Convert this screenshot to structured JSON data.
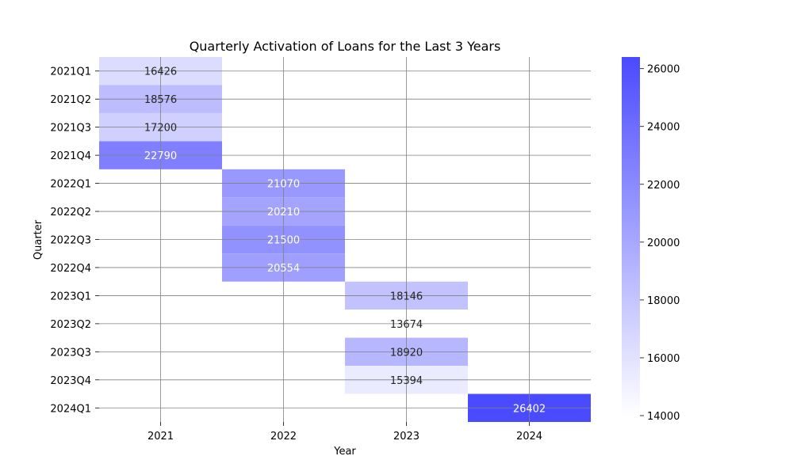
{
  "chart_data": {
    "type": "heatmap",
    "title": "Quarterly Activation of Loans for the Last 3 Years",
    "xlabel": "Year",
    "ylabel": "Quarter",
    "x_categories": [
      "2021",
      "2022",
      "2023",
      "2024"
    ],
    "y_categories": [
      "2021Q1",
      "2021Q2",
      "2021Q3",
      "2021Q4",
      "2022Q1",
      "2022Q2",
      "2022Q3",
      "2022Q4",
      "2023Q1",
      "2023Q2",
      "2023Q3",
      "2023Q4",
      "2024Q1"
    ],
    "cells": [
      {
        "quarter": "2021Q1",
        "year": "2021",
        "value": 16426
      },
      {
        "quarter": "2021Q2",
        "year": "2021",
        "value": 18576
      },
      {
        "quarter": "2021Q3",
        "year": "2021",
        "value": 17200
      },
      {
        "quarter": "2021Q4",
        "year": "2021",
        "value": 22790
      },
      {
        "quarter": "2022Q1",
        "year": "2022",
        "value": 21070
      },
      {
        "quarter": "2022Q2",
        "year": "2022",
        "value": 20210
      },
      {
        "quarter": "2022Q3",
        "year": "2022",
        "value": 21500
      },
      {
        "quarter": "2022Q4",
        "year": "2022",
        "value": 20554
      },
      {
        "quarter": "2023Q1",
        "year": "2023",
        "value": 18146
      },
      {
        "quarter": "2023Q2",
        "year": "2023",
        "value": 13674
      },
      {
        "quarter": "2023Q3",
        "year": "2023",
        "value": 18920
      },
      {
        "quarter": "2023Q4",
        "year": "2023",
        "value": 15394
      },
      {
        "quarter": "2024Q1",
        "year": "2024",
        "value": 26402
      }
    ],
    "colorbar": {
      "ticks": [
        14000,
        16000,
        18000,
        20000,
        22000,
        24000,
        26000
      ],
      "low_color": "#ffffff",
      "high_color": "#4a4aff"
    },
    "grid": true
  }
}
